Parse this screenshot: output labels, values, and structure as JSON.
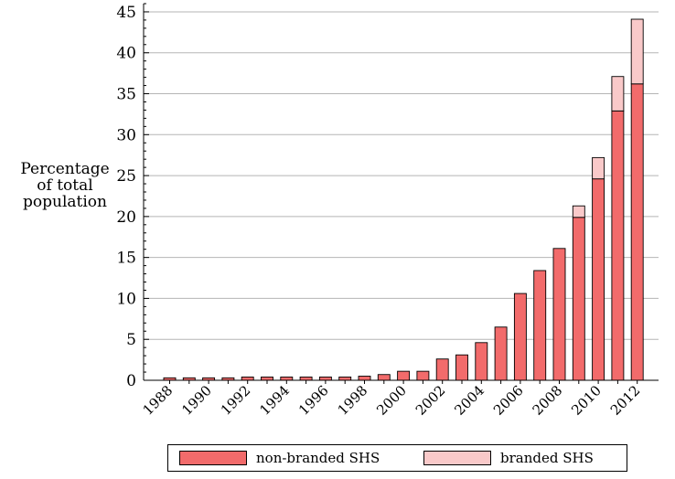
{
  "chart_data": {
    "type": "bar",
    "stacked": true,
    "title": "",
    "xlabel": "",
    "ylabel_lines": [
      "Percentage",
      "of total",
      "population"
    ],
    "ylim": [
      0,
      46
    ],
    "yticks": [
      0,
      5,
      10,
      15,
      20,
      25,
      30,
      35,
      40,
      45
    ],
    "y_minor_step": 1,
    "x_tick_labels": [
      "1988",
      "1990",
      "1992",
      "1994",
      "1996",
      "1998",
      "2000",
      "2002",
      "2004",
      "2006",
      "2008",
      "2010",
      "2012"
    ],
    "categories": [
      "1988",
      "1989",
      "1990",
      "1991",
      "1992",
      "1993",
      "1994",
      "1995",
      "1996",
      "1997",
      "1998",
      "1999",
      "2000",
      "2001",
      "2002",
      "2003",
      "2004",
      "2005",
      "2006",
      "2007",
      "2008",
      "2009",
      "2010",
      "2011",
      "2012"
    ],
    "series": [
      {
        "name": "non-branded SHS",
        "color": "#f26b6b",
        "values": [
          0.3,
          0.3,
          0.3,
          0.3,
          0.4,
          0.4,
          0.4,
          0.4,
          0.4,
          0.4,
          0.5,
          0.7,
          1.1,
          1.1,
          2.6,
          3.1,
          4.6,
          6.5,
          10.6,
          13.4,
          16.1,
          19.9,
          24.6,
          32.9,
          36.2
        ]
      },
      {
        "name": "branded SHS",
        "color": "#f9c9c9",
        "values": [
          0,
          0,
          0,
          0,
          0,
          0,
          0,
          0,
          0,
          0,
          0,
          0,
          0,
          0,
          0,
          0,
          0,
          0,
          0,
          0,
          0,
          1.4,
          2.6,
          4.2,
          7.9
        ]
      }
    ],
    "legend_position": "bottom",
    "grid": "horizontal-major"
  }
}
